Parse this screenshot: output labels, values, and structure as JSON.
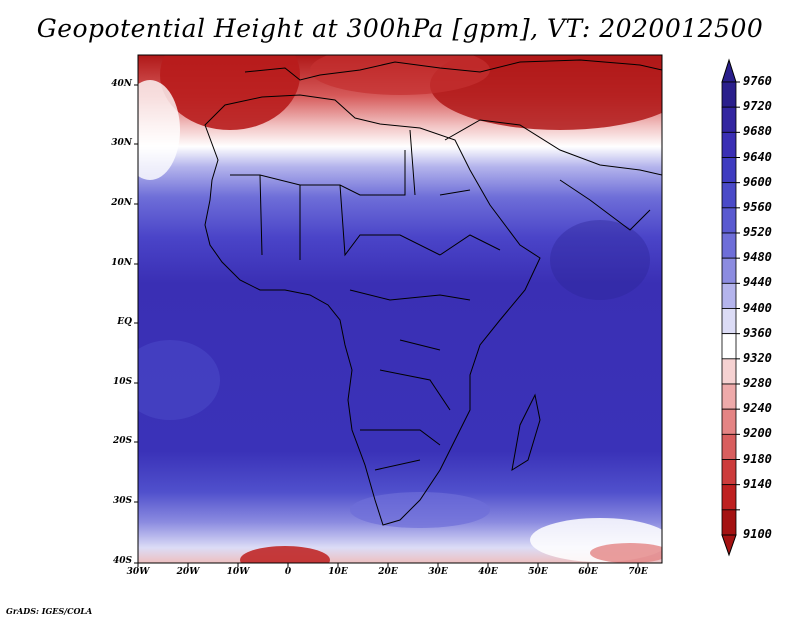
{
  "title": "Geopotential Height at 300hPa [gpm], VT: 2020012500",
  "y_ticks": [
    "40N",
    "30N",
    "20N",
    "10N",
    "EQ",
    "10S",
    "20S",
    "30S",
    "40S"
  ],
  "x_ticks": [
    "30W",
    "20W",
    "10W",
    "0",
    "10E",
    "20E",
    "30E",
    "40E",
    "50E",
    "60E",
    "70E"
  ],
  "colorbar": {
    "levels": [
      "9760",
      "9720",
      "9680",
      "9640",
      "9600",
      "9560",
      "9520",
      "9480",
      "9440",
      "9400",
      "9360",
      "9320",
      "9280",
      "9240",
      "9200",
      "9180",
      "9140",
      "9100"
    ],
    "colors": [
      "#2a1f8c",
      "#3326a0",
      "#3a2fb4",
      "#3f3cc0",
      "#4a4ac8",
      "#5a5ad0",
      "#6e6ed8",
      "#8c8ce0",
      "#b4b4ec",
      "#dcdcf6",
      "#ffffff",
      "#f6d2d2",
      "#eeaaaa",
      "#e48484",
      "#d85e5e",
      "#cc3c3c",
      "#be2020",
      "#a41212"
    ]
  },
  "credit": "GrADS: IGES/COLA"
}
